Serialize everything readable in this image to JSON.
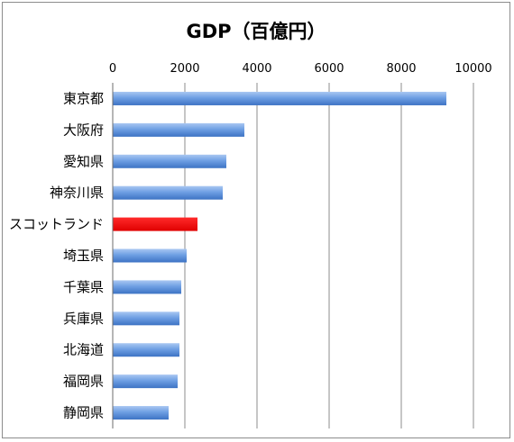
{
  "chart_data": {
    "type": "bar",
    "orientation": "horizontal",
    "title": "GDP（百億円）",
    "xlim": [
      0,
      10000
    ],
    "x_ticks": [
      0,
      2000,
      4000,
      6000,
      8000,
      10000
    ],
    "x_axis_position": "top",
    "grid": true,
    "legend": "none",
    "categories": [
      "東京都",
      "大阪府",
      "愛知県",
      "神奈川県",
      "スコットランド",
      "埼玉県",
      "千葉県",
      "兵庫県",
      "北海道",
      "福岡県",
      "静岡県"
    ],
    "values": [
      9250,
      3650,
      3150,
      3050,
      2350,
      2050,
      1900,
      1850,
      1850,
      1800,
      1550
    ],
    "bar_color": "#5b8fd8",
    "highlight_index": 4,
    "highlight_color": "#ff0000"
  }
}
